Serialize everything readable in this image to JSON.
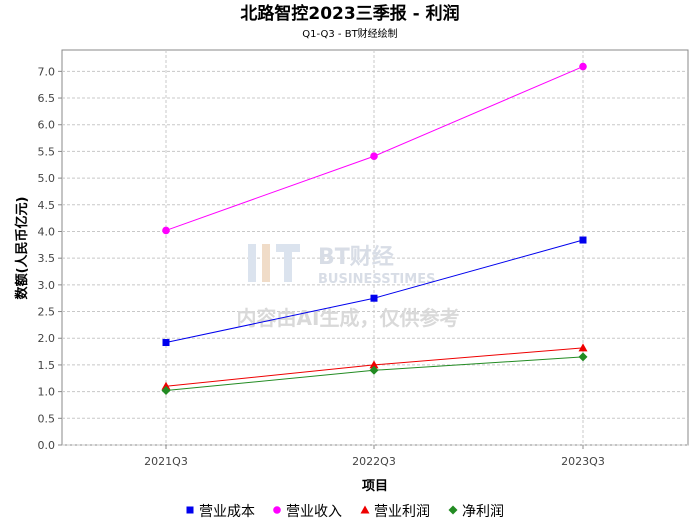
{
  "chart_data": {
    "type": "line",
    "title": "北路智控2023三季报 - 利润",
    "subtitle": "Q1-Q3 - BT财经绘制",
    "xlabel": "项目",
    "ylabel": "数额(人民币亿元)",
    "categories": [
      "2021Q3",
      "2022Q3",
      "2023Q3"
    ],
    "ylim": [
      0,
      7.4
    ],
    "yticks": [
      "0.0",
      "0.5",
      "1.0",
      "1.5",
      "2.0",
      "2.5",
      "3.0",
      "3.5",
      "4.0",
      "4.5",
      "5.0",
      "5.5",
      "6.0",
      "6.5",
      "7.0"
    ],
    "grid": true,
    "legend_position": "bottom",
    "series": [
      {
        "name": "营业成本",
        "values": [
          1.92,
          2.75,
          3.84
        ],
        "color": "#0000ee",
        "marker": "square"
      },
      {
        "name": "营业收入",
        "values": [
          4.02,
          5.41,
          7.09
        ],
        "color": "#ff00ff",
        "marker": "circle"
      },
      {
        "name": "营业利润",
        "values": [
          1.1,
          1.5,
          1.82
        ],
        "color": "#ee0000",
        "marker": "triangle"
      },
      {
        "name": "净利润",
        "values": [
          1.02,
          1.4,
          1.65
        ],
        "color": "#228b22",
        "marker": "diamond"
      }
    ]
  },
  "watermark": {
    "logo": "BT财经",
    "logo_sub": "BUSINESSTIMES",
    "text": "内容由AI生成，仅供参考"
  }
}
